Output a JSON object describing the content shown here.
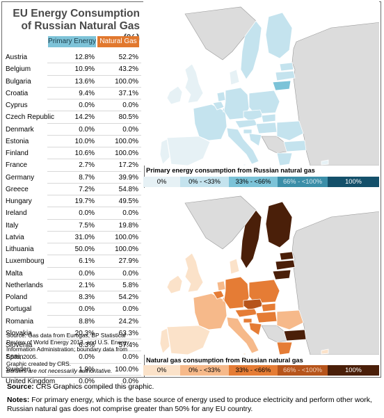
{
  "title": "EU Energy Consumption of Russian Natural Gas (%)",
  "title_line1": "EU Energy Consumption",
  "title_line2": "of Russian Natural Gas (%)",
  "columns": {
    "primary": "Primary Energy",
    "gas": "Natural Gas"
  },
  "rows": [
    {
      "country": "Austria",
      "primary": "12.8%",
      "gas": "52.2%"
    },
    {
      "country": "Belgium",
      "primary": "10.9%",
      "gas": "43.2%"
    },
    {
      "country": "Bulgaria",
      "primary": "13.6%",
      "gas": "100.0%"
    },
    {
      "country": "Croatia",
      "primary": "9.4%",
      "gas": "37.1%"
    },
    {
      "country": "Cyprus",
      "primary": "0.0%",
      "gas": "0.0%"
    },
    {
      "country": "Czech Republic",
      "primary": "14.2%",
      "gas": "80.5%"
    },
    {
      "country": "Denmark",
      "primary": "0.0%",
      "gas": "0.0%"
    },
    {
      "country": "Estonia",
      "primary": "10.0%",
      "gas": "100.0%"
    },
    {
      "country": "Finland",
      "primary": "10.6%",
      "gas": "100.0%"
    },
    {
      "country": "France",
      "primary": "2.7%",
      "gas": "17.2%"
    },
    {
      "country": "Germany",
      "primary": "8.7%",
      "gas": "39.9%"
    },
    {
      "country": "Greece",
      "primary": "7.2%",
      "gas": "54.8%"
    },
    {
      "country": "Hungary",
      "primary": "19.7%",
      "gas": "49.5%"
    },
    {
      "country": "Ireland",
      "primary": "0.0%",
      "gas": "0.0%"
    },
    {
      "country": "Italy",
      "primary": "7.5%",
      "gas": "19.8%"
    },
    {
      "country": "Latvia",
      "primary": "31.0%",
      "gas": "100.0%"
    },
    {
      "country": "Lithuania",
      "primary": "50.0%",
      "gas": "100.0%"
    },
    {
      "country": "Luxembourg",
      "primary": "6.1%",
      "gas": "27.9%"
    },
    {
      "country": "Malta",
      "primary": "0.0%",
      "gas": "0.0%"
    },
    {
      "country": "Netherlands",
      "primary": "2.1%",
      "gas": "5.8%"
    },
    {
      "country": "Poland",
      "primary": "8.3%",
      "gas": "54.2%"
    },
    {
      "country": "Portugal",
      "primary": "0.0%",
      "gas": "0.0%"
    },
    {
      "country": "Romania",
      "primary": "8.8%",
      "gas": "24.2%"
    },
    {
      "country": "Slovakia",
      "primary": "20.3%",
      "gas": "63.3%"
    },
    {
      "country": "Slovenia",
      "primary": "6.3%",
      "gas": "57.4%"
    },
    {
      "country": "Spain",
      "primary": "0.0%",
      "gas": "0.0%"
    },
    {
      "country": "Sweden",
      "primary": "1.9%",
      "gas": "100.0%"
    },
    {
      "country": "United Kingdom",
      "primary": "0.0%",
      "gas": "0.0%"
    }
  ],
  "source_note": "Source: Gas data from Eurogas, BP Statistical Review of World Energy 2013, and U.S. Energy Information Administration; boundary data from ESRI, 2005.",
  "created_note": "Graphic created by CRS.",
  "borders_note": "Borders are not necessarily authoritative.",
  "map_primary_title": "Primary energy consumption from Russian natural gas",
  "map_gas_title": "Natural gas consumption from Russian natural gas",
  "legend_primary": [
    {
      "label": "0%",
      "color": "#e6f1f5",
      "text": "#000000"
    },
    {
      "label": "0% - <33%",
      "color": "#c4e3ee",
      "text": "#000000"
    },
    {
      "label": "33% - <66%",
      "color": "#7cc3d8",
      "text": "#000000"
    },
    {
      "label": "66% - <100%",
      "color": "#3b8ea8",
      "text": "#d6e8ef"
    },
    {
      "label": "100%",
      "color": "#14506a",
      "text": "#ffffff"
    }
  ],
  "legend_gas": [
    {
      "label": "0%",
      "color": "#fbe2c9",
      "text": "#000000"
    },
    {
      "label": "0% - <33%",
      "color": "#f6b98a",
      "text": "#000000"
    },
    {
      "label": "33% - <66%",
      "color": "#e57c35",
      "text": "#000000"
    },
    {
      "label": "66% - <100%",
      "color": "#b6541b",
      "text": "#f3d2bc"
    },
    {
      "label": "100%",
      "color": "#4a1f09",
      "text": "#ffffff"
    }
  ],
  "map_colors": {
    "land_other": "#dcdcdc",
    "sea": "#ffffff",
    "border": "#9a9a9a"
  },
  "bottom_source_label": "Source:",
  "bottom_source": "CRS Graphics compiled this graphic.",
  "bottom_notes_label": "Notes:",
  "bottom_notes": "For primary energy, which is the base source of energy used to produce electricity and perform other work, Russian natural gas does not comprise greater than 50% for any EU country."
}
